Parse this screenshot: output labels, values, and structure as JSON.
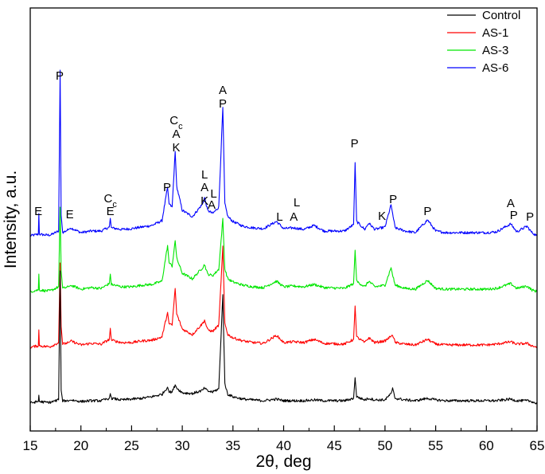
{
  "chart_data": {
    "type": "line",
    "title": "",
    "xlabel": "2θ, deg",
    "ylabel": "Intensity, a.u.",
    "xlim": [
      15,
      65
    ],
    "xticks": [
      15,
      20,
      25,
      30,
      35,
      40,
      45,
      50,
      55,
      60,
      65
    ],
    "yticks_shown": false,
    "grid": false,
    "legend": {
      "position": "top-right"
    },
    "series": [
      {
        "name": "Control",
        "color": "#000000",
        "baseline": 0,
        "points": [
          [
            15.0,
            4
          ],
          [
            15.8,
            6
          ],
          [
            15.85,
            14
          ],
          [
            15.9,
            6
          ],
          [
            16.5,
            5
          ],
          [
            17.0,
            5
          ],
          [
            17.8,
            8
          ],
          [
            17.95,
            170
          ],
          [
            18.05,
            20
          ],
          [
            18.2,
            7
          ],
          [
            18.8,
            7
          ],
          [
            19.0,
            8
          ],
          [
            20.0,
            6
          ],
          [
            21.0,
            7
          ],
          [
            22.0,
            7
          ],
          [
            22.8,
            10
          ],
          [
            22.9,
            16
          ],
          [
            23.0,
            10
          ],
          [
            24.0,
            8
          ],
          [
            25.0,
            9
          ],
          [
            26.0,
            10
          ],
          [
            27.0,
            12
          ],
          [
            28.0,
            15
          ],
          [
            28.55,
            24
          ],
          [
            28.7,
            18
          ],
          [
            29.0,
            18
          ],
          [
            29.3,
            27
          ],
          [
            29.45,
            23
          ],
          [
            30.0,
            17
          ],
          [
            31.0,
            16
          ],
          [
            32.0,
            20
          ],
          [
            32.2,
            23
          ],
          [
            32.5,
            19
          ],
          [
            33.0,
            18
          ],
          [
            33.6,
            22
          ],
          [
            34.0,
            140
          ],
          [
            34.2,
            28
          ],
          [
            34.5,
            15
          ],
          [
            35.0,
            12
          ],
          [
            36.0,
            9
          ],
          [
            37.0,
            8
          ],
          [
            38.0,
            7
          ],
          [
            39.3,
            9
          ],
          [
            40.0,
            7
          ],
          [
            41.0,
            7
          ],
          [
            42.0,
            7
          ],
          [
            43.0,
            8
          ],
          [
            44.0,
            7
          ],
          [
            46.0,
            7
          ],
          [
            46.9,
            10
          ],
          [
            47.05,
            36
          ],
          [
            47.2,
            12
          ],
          [
            48.0,
            8
          ],
          [
            48.4,
            10
          ],
          [
            49.0,
            8
          ],
          [
            50.0,
            8
          ],
          [
            50.6,
            16
          ],
          [
            50.75,
            22
          ],
          [
            51.0,
            10
          ],
          [
            52.0,
            8
          ],
          [
            53.0,
            7
          ],
          [
            54.2,
            10
          ],
          [
            55.0,
            8
          ],
          [
            56.0,
            7
          ],
          [
            57.0,
            7
          ],
          [
            58.0,
            7
          ],
          [
            59.0,
            7
          ],
          [
            60.0,
            7
          ],
          [
            61.0,
            7
          ],
          [
            62.4,
            9
          ],
          [
            63.0,
            7
          ],
          [
            64.0,
            7
          ],
          [
            64.5,
            6
          ],
          [
            65.0,
            3
          ]
        ]
      },
      {
        "name": "AS-1",
        "color": "#ff0000",
        "baseline": 70,
        "points": [
          [
            15.0,
            4
          ],
          [
            15.8,
            6
          ],
          [
            15.85,
            26
          ],
          [
            15.9,
            6
          ],
          [
            16.5,
            5
          ],
          [
            17.0,
            5
          ],
          [
            17.8,
            10
          ],
          [
            17.95,
            110
          ],
          [
            18.05,
            30
          ],
          [
            18.2,
            8
          ],
          [
            18.8,
            10
          ],
          [
            19.0,
            12
          ],
          [
            20.0,
            7
          ],
          [
            21.0,
            9
          ],
          [
            22.0,
            8
          ],
          [
            22.8,
            14
          ],
          [
            22.9,
            28
          ],
          [
            23.0,
            13
          ],
          [
            24.0,
            10
          ],
          [
            25.0,
            10
          ],
          [
            26.0,
            12
          ],
          [
            27.0,
            13
          ],
          [
            28.0,
            17
          ],
          [
            28.55,
            48
          ],
          [
            28.7,
            33
          ],
          [
            29.0,
            32
          ],
          [
            29.3,
            78
          ],
          [
            29.45,
            46
          ],
          [
            30.0,
            27
          ],
          [
            31.0,
            20
          ],
          [
            32.0,
            34
          ],
          [
            32.2,
            38
          ],
          [
            32.5,
            26
          ],
          [
            33.0,
            24
          ],
          [
            33.6,
            32
          ],
          [
            34.0,
            130
          ],
          [
            34.2,
            34
          ],
          [
            34.5,
            20
          ],
          [
            35.0,
            16
          ],
          [
            36.0,
            12
          ],
          [
            37.0,
            10
          ],
          [
            38.0,
            9
          ],
          [
            39.3,
            19
          ],
          [
            40.0,
            10
          ],
          [
            41.0,
            11
          ],
          [
            42.0,
            10
          ],
          [
            43.0,
            14
          ],
          [
            44.0,
            9
          ],
          [
            46.0,
            8
          ],
          [
            46.9,
            14
          ],
          [
            47.05,
            56
          ],
          [
            47.2,
            17
          ],
          [
            48.0,
            10
          ],
          [
            48.4,
            16
          ],
          [
            49.0,
            10
          ],
          [
            50.0,
            12
          ],
          [
            50.6,
            18
          ],
          [
            50.75,
            20
          ],
          [
            51.0,
            10
          ],
          [
            52.0,
            8
          ],
          [
            53.0,
            7
          ],
          [
            54.2,
            14
          ],
          [
            55.0,
            8
          ],
          [
            56.0,
            7
          ],
          [
            57.0,
            7
          ],
          [
            58.0,
            7
          ],
          [
            59.0,
            7
          ],
          [
            60.0,
            7
          ],
          [
            61.0,
            8
          ],
          [
            62.4,
            11
          ],
          [
            63.0,
            8
          ],
          [
            64.0,
            9
          ],
          [
            64.5,
            6
          ],
          [
            65.0,
            4
          ]
        ]
      },
      {
        "name": "AS-3",
        "color": "#00e600",
        "baseline": 140,
        "points": [
          [
            15.0,
            4
          ],
          [
            15.8,
            6
          ],
          [
            15.85,
            26
          ],
          [
            15.9,
            6
          ],
          [
            16.5,
            5
          ],
          [
            17.0,
            5
          ],
          [
            17.8,
            10
          ],
          [
            17.95,
            110
          ],
          [
            18.05,
            30
          ],
          [
            18.2,
            8
          ],
          [
            18.8,
            10
          ],
          [
            19.0,
            12
          ],
          [
            20.0,
            7
          ],
          [
            21.0,
            9
          ],
          [
            22.0,
            8
          ],
          [
            22.8,
            14
          ],
          [
            22.9,
            26
          ],
          [
            23.0,
            13
          ],
          [
            24.0,
            10
          ],
          [
            25.0,
            10
          ],
          [
            26.0,
            12
          ],
          [
            27.0,
            13
          ],
          [
            28.0,
            17
          ],
          [
            28.55,
            62
          ],
          [
            28.7,
            40
          ],
          [
            29.0,
            36
          ],
          [
            29.3,
            68
          ],
          [
            29.45,
            46
          ],
          [
            30.0,
            27
          ],
          [
            31.0,
            20
          ],
          [
            32.0,
            34
          ],
          [
            32.2,
            38
          ],
          [
            32.5,
            26
          ],
          [
            33.0,
            24
          ],
          [
            33.6,
            32
          ],
          [
            34.0,
            95
          ],
          [
            34.2,
            32
          ],
          [
            34.5,
            20
          ],
          [
            35.0,
            16
          ],
          [
            36.0,
            12
          ],
          [
            37.0,
            10
          ],
          [
            38.0,
            9
          ],
          [
            39.3,
            17
          ],
          [
            40.0,
            10
          ],
          [
            41.0,
            11
          ],
          [
            42.0,
            10
          ],
          [
            43.0,
            13
          ],
          [
            44.0,
            9
          ],
          [
            46.0,
            8
          ],
          [
            46.9,
            14
          ],
          [
            47.05,
            56
          ],
          [
            47.2,
            17
          ],
          [
            48.0,
            10
          ],
          [
            48.4,
            17
          ],
          [
            49.0,
            10
          ],
          [
            50.0,
            12
          ],
          [
            50.6,
            34
          ],
          [
            50.75,
            25
          ],
          [
            51.0,
            12
          ],
          [
            52.0,
            8
          ],
          [
            53.0,
            7
          ],
          [
            54.2,
            18
          ],
          [
            55.0,
            8
          ],
          [
            56.0,
            7
          ],
          [
            57.0,
            7
          ],
          [
            58.0,
            7
          ],
          [
            59.0,
            7
          ],
          [
            60.0,
            7
          ],
          [
            61.0,
            8
          ],
          [
            62.4,
            14
          ],
          [
            63.0,
            8
          ],
          [
            64.0,
            11
          ],
          [
            64.5,
            6
          ],
          [
            65.0,
            4
          ]
        ]
      },
      {
        "name": "AS-6",
        "color": "#0000ff",
        "baseline": 210,
        "points": [
          [
            15.0,
            4
          ],
          [
            15.8,
            6
          ],
          [
            15.85,
            32
          ],
          [
            15.9,
            6
          ],
          [
            16.5,
            5
          ],
          [
            17.0,
            5
          ],
          [
            17.8,
            10
          ],
          [
            17.95,
            212
          ],
          [
            18.05,
            30
          ],
          [
            18.2,
            8
          ],
          [
            18.8,
            12
          ],
          [
            19.0,
            14
          ],
          [
            20.0,
            8
          ],
          [
            21.0,
            10
          ],
          [
            22.0,
            10
          ],
          [
            22.8,
            15
          ],
          [
            22.9,
            26
          ],
          [
            23.0,
            14
          ],
          [
            24.0,
            12
          ],
          [
            25.0,
            13
          ],
          [
            26.0,
            15
          ],
          [
            27.0,
            17
          ],
          [
            28.0,
            23
          ],
          [
            28.55,
            65
          ],
          [
            28.7,
            44
          ],
          [
            29.0,
            40
          ],
          [
            29.3,
            110
          ],
          [
            29.45,
            66
          ],
          [
            30.0,
            36
          ],
          [
            31.0,
            28
          ],
          [
            32.0,
            44
          ],
          [
            32.2,
            52
          ],
          [
            32.5,
            36
          ],
          [
            33.0,
            32
          ],
          [
            33.6,
            40
          ],
          [
            34.0,
            165
          ],
          [
            34.2,
            44
          ],
          [
            34.5,
            28
          ],
          [
            35.0,
            22
          ],
          [
            36.0,
            16
          ],
          [
            37.0,
            14
          ],
          [
            38.0,
            13
          ],
          [
            39.3,
            22
          ],
          [
            40.0,
            13
          ],
          [
            41.0,
            14
          ],
          [
            42.0,
            12
          ],
          [
            43.0,
            17
          ],
          [
            44.0,
            10
          ],
          [
            46.0,
            10
          ],
          [
            46.9,
            18
          ],
          [
            47.05,
            96
          ],
          [
            47.2,
            22
          ],
          [
            48.0,
            12
          ],
          [
            48.4,
            20
          ],
          [
            49.0,
            12
          ],
          [
            50.0,
            15
          ],
          [
            50.6,
            43
          ],
          [
            50.75,
            32
          ],
          [
            51.0,
            14
          ],
          [
            52.0,
            10
          ],
          [
            53.0,
            8
          ],
          [
            54.2,
            24
          ],
          [
            55.0,
            10
          ],
          [
            56.0,
            8
          ],
          [
            57.0,
            8
          ],
          [
            58.0,
            8
          ],
          [
            59.0,
            8
          ],
          [
            60.0,
            8
          ],
          [
            61.0,
            9
          ],
          [
            62.4,
            19
          ],
          [
            63.0,
            9
          ],
          [
            64.0,
            16
          ],
          [
            64.5,
            8
          ],
          [
            65.0,
            4
          ]
        ]
      }
    ],
    "annotations": [
      {
        "text": "P",
        "x": 17.9,
        "y": 410
      },
      {
        "text": "E",
        "x": 15.8,
        "y": 240
      },
      {
        "text": "E",
        "x": 18.9,
        "y": 236
      },
      {
        "text": "C",
        "sub": "c",
        "x": 22.9,
        "y": 256
      },
      {
        "text": "E",
        "x": 22.9,
        "y": 240
      },
      {
        "text": "P",
        "x": 28.5,
        "y": 270
      },
      {
        "text": "C",
        "sub": "c",
        "x": 29.4,
        "y": 354
      },
      {
        "text": "A",
        "x": 29.4,
        "y": 337
      },
      {
        "text": "K",
        "x": 29.4,
        "y": 320
      },
      {
        "text": "L",
        "x": 32.2,
        "y": 286
      },
      {
        "text": "A",
        "x": 32.2,
        "y": 270
      },
      {
        "text": "L",
        "x": 33.1,
        "y": 262
      },
      {
        "text": "K",
        "x": 32.2,
        "y": 253
      },
      {
        "text": "A",
        "x": 32.9,
        "y": 248
      },
      {
        "text": "A",
        "x": 34.0,
        "y": 392
      },
      {
        "text": "P",
        "x": 34.0,
        "y": 375
      },
      {
        "text": "L",
        "x": 39.6,
        "y": 233
      },
      {
        "text": "L",
        "x": 41.3,
        "y": 251
      },
      {
        "text": "A",
        "x": 41.0,
        "y": 233
      },
      {
        "text": "P",
        "x": 47.0,
        "y": 325
      },
      {
        "text": "K",
        "x": 49.7,
        "y": 234
      },
      {
        "text": "P",
        "x": 50.8,
        "y": 255
      },
      {
        "text": "P",
        "x": 54.2,
        "y": 240
      },
      {
        "text": "A",
        "x": 62.4,
        "y": 250
      },
      {
        "text": "P",
        "x": 62.7,
        "y": 235
      },
      {
        "text": "P",
        "x": 64.3,
        "y": 233
      }
    ]
  }
}
